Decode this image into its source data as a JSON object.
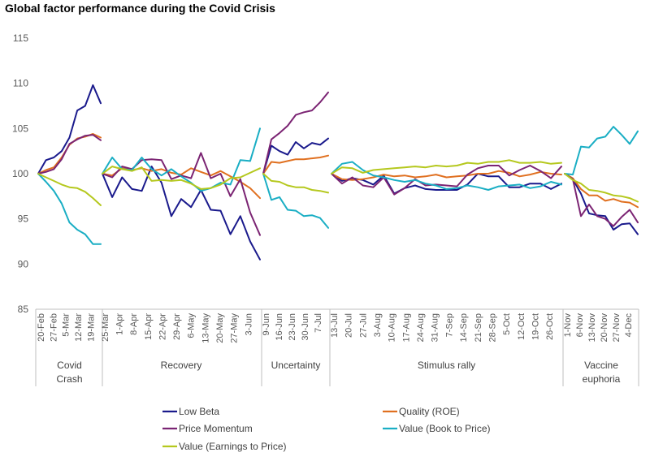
{
  "chart_data": {
    "type": "line",
    "title": "Global factor performance during the Covid Crisis",
    "ylim": [
      85,
      115
    ],
    "yticks": [
      85,
      90,
      95,
      100,
      105,
      110,
      115
    ],
    "grid": false,
    "legend_position": "bottom",
    "periods": [
      {
        "label_lines": [
          "Covid",
          "Crash"
        ],
        "x_labels": [
          "20-Feb",
          "27-Feb",
          "5-Mar",
          "12-Mar",
          "19-Mar"
        ],
        "series": {
          "low_beta": [
            100,
            101.5,
            101.8,
            102.5,
            104,
            107,
            107.5,
            109.8,
            107.8
          ],
          "quality_roe": [
            100,
            100.4,
            100.7,
            101.8,
            103.2,
            103.9,
            104.1,
            104.4,
            104
          ],
          "price_momentum": [
            100,
            100.2,
            100.5,
            101.6,
            103.3,
            103.8,
            104.2,
            104.3,
            103.7
          ],
          "value_bp": [
            100,
            99.1,
            98.1,
            96.7,
            94.6,
            93.8,
            93.3,
            92.2,
            92.2
          ],
          "value_ep": [
            100,
            99.6,
            99.2,
            98.8,
            98.5,
            98.4,
            98,
            97.3,
            96.5
          ]
        }
      },
      {
        "label_lines": [
          "Recovery"
        ],
        "x_labels": [
          "25-Mar",
          "1-Apr",
          "8-Apr",
          "15-Apr",
          "22-Apr",
          "29-Apr",
          "6-May",
          "13-May",
          "20-May",
          "27-May",
          "3-Jun"
        ],
        "series": {
          "low_beta": [
            100,
            97.4,
            99.6,
            98.3,
            98.1,
            100.8,
            99,
            95.3,
            97.2,
            96.3,
            98.2,
            96,
            95.9,
            93.3,
            95.3,
            92.5,
            90.5
          ],
          "quality_roe": [
            100,
            99.8,
            100.6,
            100.4,
            100.6,
            100.3,
            100.5,
            100.1,
            99.9,
            100.6,
            100.2,
            99.8,
            100.3,
            99.7,
            99.1,
            98.4,
            97.3
          ],
          "price_momentum": [
            100,
            99.6,
            100.8,
            100.5,
            101.5,
            101.6,
            101.5,
            99.4,
            99.8,
            99.5,
            102.3,
            99.5,
            100,
            97.5,
            99.4,
            95.7,
            93.2
          ],
          "value_bp": [
            100,
            101.8,
            100.5,
            100.4,
            101.8,
            100.5,
            99.8,
            100.5,
            99.7,
            99,
            98.1,
            98.4,
            99,
            98.8,
            101.5,
            101.4,
            105
          ],
          "value_ep": [
            100,
            100.8,
            100.5,
            100.3,
            100.7,
            99.2,
            99.3,
            99.2,
            99.3,
            98.9,
            98.3,
            98.4,
            98.8,
            99.5,
            99.6,
            100.1,
            100.6
          ]
        }
      },
      {
        "label_lines": [
          "Uncertainty"
        ],
        "x_labels": [
          "9-Jun",
          "16-Jun",
          "23-Jun",
          "30-Jun",
          "7-Jul"
        ],
        "series": {
          "low_beta": [
            100,
            103.1,
            102.5,
            102.1,
            103.5,
            102.8,
            103.4,
            103.2,
            103.9
          ],
          "quality_roe": [
            100,
            101.3,
            101.2,
            101.4,
            101.6,
            101.6,
            101.7,
            101.8,
            102
          ],
          "price_momentum": [
            100,
            103.8,
            104.5,
            105.3,
            106.5,
            106.8,
            107,
            107.9,
            109
          ],
          "value_bp": [
            100,
            97.1,
            97.4,
            96,
            95.9,
            95.3,
            95.4,
            95.1,
            94
          ],
          "value_ep": [
            100,
            99.2,
            99.1,
            98.7,
            98.5,
            98.5,
            98.2,
            98.1,
            97.9
          ]
        }
      },
      {
        "label_lines": [
          "Stimulus rally"
        ],
        "x_labels": [
          "13-Jul",
          "20-Jul",
          "27-Jul",
          "3-Aug",
          "10-Aug",
          "17-Aug",
          "24-Aug",
          "31-Aug",
          "7-Sep",
          "14-Sep",
          "21-Sep",
          "28-Sep",
          "5-Oct",
          "12-Oct",
          "19-Oct",
          "26-Oct"
        ],
        "series": {
          "low_beta": [
            100,
            99.2,
            99.5,
            99.3,
            98.8,
            99.8,
            97.8,
            98.4,
            98.7,
            98.3,
            98.2,
            98.2,
            98.2,
            98.8,
            100,
            99.7,
            99.7,
            98.5,
            98.5,
            98.9,
            98.9,
            98.3,
            98.9
          ],
          "quality_roe": [
            100,
            99.4,
            99.3,
            99.4,
            99.6,
            99.9,
            99.7,
            99.8,
            99.6,
            99.7,
            99.9,
            99.6,
            99.7,
            99.8,
            100,
            100,
            100.3,
            100.1,
            99.7,
            99.9,
            100.2,
            100,
            99.9
          ],
          "price_momentum": [
            100,
            98.9,
            99.6,
            98.7,
            98.5,
            99.6,
            97.7,
            98.4,
            99.4,
            98.7,
            98.8,
            98.7,
            98.6,
            99.9,
            100.6,
            100.9,
            100.9,
            99.8,
            100.4,
            100.9,
            100.3,
            99.5,
            100.8
          ],
          "value_bp": [
            100,
            101.1,
            101.3,
            100.4,
            99.8,
            99.6,
            99.3,
            99.1,
            99.3,
            98.9,
            98.7,
            98.3,
            98.4,
            98.7,
            98.5,
            98.2,
            98.6,
            98.7,
            98.8,
            98.4,
            98.6,
            99.1,
            98.8
          ],
          "value_ep": [
            100,
            100.7,
            100.6,
            100.1,
            100.4,
            100.5,
            100.6,
            100.7,
            100.8,
            100.7,
            100.9,
            100.8,
            100.9,
            101.2,
            101.1,
            101.3,
            101.3,
            101.5,
            101.2,
            101.2,
            101.3,
            101.1,
            101.2
          ]
        }
      },
      {
        "label_lines": [
          "Vaccine",
          "euphoria"
        ],
        "x_labels": [
          "1-Nov",
          "6-Nov",
          "13-Nov",
          "20-Nov",
          "27-Nov",
          "4-Dec"
        ],
        "series": {
          "low_beta": [
            100,
            99.4,
            97.8,
            95.6,
            95.4,
            95.3,
            93.8,
            94.4,
            94.5,
            93.3
          ],
          "quality_roe": [
            100,
            99.5,
            98.3,
            97.6,
            97.6,
            97,
            97.2,
            96.9,
            96.8,
            96.3
          ],
          "price_momentum": [
            100,
            99.4,
            95.3,
            96.6,
            95.3,
            95,
            94.2,
            95.2,
            96,
            94.6
          ],
          "value_bp": [
            100,
            99.9,
            103,
            102.9,
            103.9,
            104.1,
            105.2,
            104.3,
            103.3,
            104.7
          ],
          "value_ep": [
            100,
            99.3,
            98.9,
            98.2,
            98.1,
            97.9,
            97.6,
            97.5,
            97.3,
            96.9
          ]
        }
      }
    ],
    "series": [
      {
        "key": "low_beta",
        "name": "Low Beta",
        "color": "#1a1a8c"
      },
      {
        "key": "quality_roe",
        "name": "Quality (ROE)",
        "color": "#e07020"
      },
      {
        "key": "price_momentum",
        "name": "Price Momentum",
        "color": "#7b2473"
      },
      {
        "key": "value_bp",
        "name": "Value (Book to Price)",
        "color": "#1aaec4"
      },
      {
        "key": "value_ep",
        "name": "Value (Earnings to Price)",
        "color": "#b5c81e"
      }
    ]
  }
}
